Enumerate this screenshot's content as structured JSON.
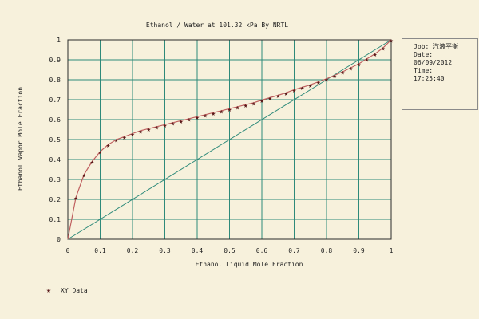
{
  "title": "Ethanol / Water at  101.32 kPa By NRTL",
  "info_box": {
    "job_label": "Job:",
    "job_value": "汽液平衡",
    "date_label": "Date:",
    "date_value": "06/09/2012",
    "time_label": "Time:",
    "time_value": "17:25:40"
  },
  "legend": {
    "label": "XY Data"
  },
  "colors": {
    "background": "#f7f1dc",
    "grid": "#2e8a7a",
    "frame": "#2a2a2a",
    "curve": "#c06060",
    "diagonal": "#2e8a7a",
    "marker": "#5a1a1a"
  },
  "chart_data": {
    "type": "line",
    "title": "Ethanol / Water at  101.32 kPa By NRTL",
    "xlabel": "Ethanol Liquid Mole Fraction",
    "ylabel": "Ethanol Vapor Mole Fraction",
    "xlim": [
      0,
      1
    ],
    "ylim": [
      0,
      1
    ],
    "grid": true,
    "legend_position": "bottom-left",
    "x_ticks": [
      "0",
      "0.1",
      "0.2",
      "0.3",
      "0.4",
      "0.5",
      "0.6",
      "0.7",
      "0.8",
      "0.9",
      "1"
    ],
    "y_ticks": [
      "0",
      "0.1",
      "0.2",
      "0.3",
      "0.4",
      "0.5",
      "0.6",
      "0.7",
      "0.8",
      "0.9",
      "1"
    ],
    "series": [
      {
        "name": "XY Data",
        "x": [
          0.0,
          0.025,
          0.05,
          0.075,
          0.1,
          0.125,
          0.15,
          0.175,
          0.2,
          0.225,
          0.25,
          0.275,
          0.3,
          0.325,
          0.35,
          0.375,
          0.4,
          0.425,
          0.45,
          0.475,
          0.5,
          0.525,
          0.55,
          0.575,
          0.6,
          0.625,
          0.65,
          0.675,
          0.7,
          0.725,
          0.75,
          0.775,
          0.8,
          0.825,
          0.85,
          0.875,
          0.9,
          0.925,
          0.95,
          0.975,
          1.0
        ],
        "y": [
          0.0,
          0.21,
          0.325,
          0.39,
          0.44,
          0.475,
          0.5,
          0.515,
          0.53,
          0.545,
          0.555,
          0.565,
          0.575,
          0.585,
          0.595,
          0.605,
          0.615,
          0.625,
          0.635,
          0.645,
          0.655,
          0.665,
          0.675,
          0.685,
          0.698,
          0.71,
          0.722,
          0.735,
          0.75,
          0.762,
          0.775,
          0.79,
          0.805,
          0.822,
          0.84,
          0.86,
          0.88,
          0.905,
          0.93,
          0.96,
          1.0
        ]
      },
      {
        "x": [
          0,
          1
        ],
        "y": [
          0,
          1
        ]
      }
    ]
  }
}
